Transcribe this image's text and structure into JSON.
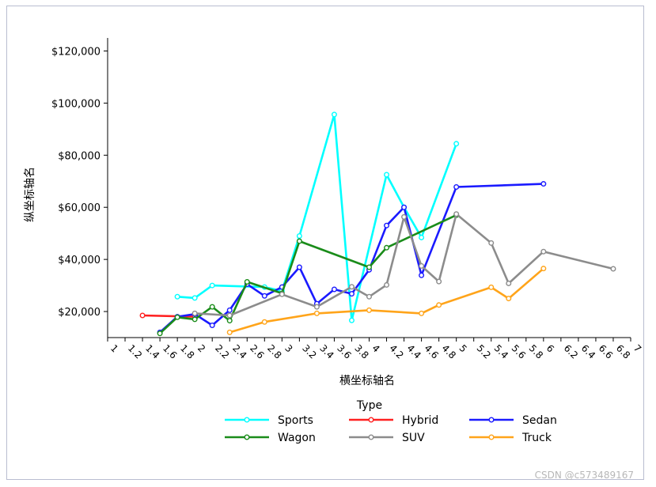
{
  "chart_data": {
    "type": "line",
    "title": "",
    "xlabel": "横坐标轴名",
    "ylabel": "纵坐标轴名",
    "xlim": [
      1,
      7
    ],
    "ylim": [
      10000,
      125000
    ],
    "x_ticks": [
      1,
      1.2,
      1.4,
      1.6,
      1.8,
      2,
      2.2,
      2.4,
      2.6,
      2.8,
      3,
      3.2,
      3.4,
      3.6,
      3.8,
      4,
      4.2,
      4.4,
      4.6,
      4.8,
      5,
      5.2,
      5.4,
      5.6,
      5.8,
      6,
      6.2,
      6.4,
      6.6,
      6.8,
      7
    ],
    "x_tick_labels": [
      "1",
      "1.2",
      "1.4",
      "1.6",
      "1.8",
      "2",
      "2.2",
      "2.4",
      "2.6",
      "2.8",
      "3",
      "3.2",
      "3.4",
      "3.6",
      "3.8",
      "4",
      "4.2",
      "4.4",
      "4.6",
      "4.8",
      "5",
      "5.2",
      "5.4",
      "5.6",
      "5.8",
      "6",
      "6.2",
      "6.4",
      "6.6",
      "6.8",
      "7"
    ],
    "y_ticks": [
      20000,
      40000,
      60000,
      80000,
      100000,
      120000
    ],
    "y_tick_labels": [
      "$20,000",
      "$40,000",
      "$60,000",
      "$80,000",
      "$100,000",
      "$120,000"
    ],
    "grid": false,
    "legend": {
      "title": "Type",
      "position": "bottom"
    },
    "series": [
      {
        "name": "Sports",
        "color": "#00ffff",
        "x": [
          1.8,
          2.0,
          2.2,
          2.8,
          3.0,
          3.2,
          3.6,
          3.8,
          4.2,
          4.4,
          4.6,
          5.0
        ],
        "y": [
          25700,
          25200,
          30000,
          29400,
          27900,
          49000,
          95600,
          16600,
          72500,
          60000,
          48400,
          84400
        ]
      },
      {
        "name": "Hybrid",
        "color": "#ff2020",
        "x": [
          1.4,
          2.0
        ],
        "y": [
          18500,
          18000
        ]
      },
      {
        "name": "Sedan",
        "color": "#1a1aff",
        "x": [
          1.6,
          1.8,
          2.0,
          2.2,
          2.4,
          2.6,
          2.8,
          3.0,
          3.2,
          3.4,
          3.6,
          3.8,
          4.0,
          4.2,
          4.4,
          4.6,
          5.0,
          6.0
        ],
        "y": [
          12000,
          18000,
          19000,
          14700,
          20500,
          30500,
          26000,
          29400,
          37000,
          23000,
          28500,
          26800,
          36000,
          53000,
          60000,
          33900,
          67800,
          69000
        ]
      },
      {
        "name": "Wagon",
        "color": "#1a8c1a",
        "x": [
          1.6,
          1.8,
          2.0,
          2.2,
          2.4,
          2.6,
          3.0,
          3.2,
          4.0,
          4.2,
          5.0
        ],
        "y": [
          11600,
          17800,
          17000,
          21800,
          16500,
          31400,
          27000,
          47000,
          37000,
          44500,
          57000
        ]
      },
      {
        "name": "SUV",
        "color": "#8c8c8c",
        "x": [
          2.0,
          2.4,
          3.0,
          3.4,
          3.8,
          4.0,
          4.2,
          4.4,
          4.6,
          4.8,
          5.0,
          5.4,
          5.6,
          6.0,
          6.8
        ],
        "y": [
          19300,
          18500,
          26600,
          21800,
          29500,
          25700,
          30200,
          56300,
          37500,
          31500,
          57400,
          46300,
          30800,
          43000,
          36400
        ]
      },
      {
        "name": "Truck",
        "color": "#ffa41a",
        "x": [
          2.4,
          2.8,
          3.4,
          4.0,
          4.6,
          4.8,
          5.4,
          5.6,
          6.0
        ],
        "y": [
          12000,
          16000,
          19300,
          20500,
          19300,
          22500,
          29300,
          25000,
          36500
        ]
      }
    ]
  },
  "watermark": "CSDN @c573489167"
}
